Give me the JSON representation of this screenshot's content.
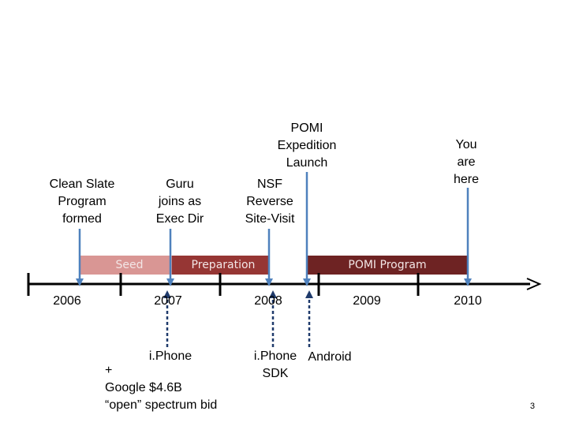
{
  "phases": {
    "seed": "Seed",
    "preparation": "Preparation",
    "pomi_program": "POMI Program"
  },
  "years": [
    "2006",
    "2007",
    "2008",
    "2009",
    "2010"
  ],
  "events_above": {
    "clean_slate": [
      "Clean Slate",
      "Program",
      "formed"
    ],
    "guru": [
      "Guru",
      "joins as",
      "Exec Dir"
    ],
    "nsf": [
      "NSF",
      "Reverse",
      "Site-Visit"
    ],
    "pomi_launch": [
      "POMI",
      "Expedition",
      "Launch"
    ],
    "you_are_here": [
      "You",
      "are",
      "here"
    ]
  },
  "events_below": {
    "iphone": "i.Phone",
    "google": [
      "+",
      "Google $4.6B",
      "“open” spectrum bid"
    ],
    "iphone_sdk": [
      "i.Phone",
      "SDK"
    ],
    "android": "Android"
  },
  "page_number": "3",
  "colors": {
    "seed": "#d99694",
    "preparation": "#963634",
    "pomi_program": "#6e2323",
    "arrow": "#4f81bd",
    "dashed_arrow": "#1f3a6b"
  }
}
